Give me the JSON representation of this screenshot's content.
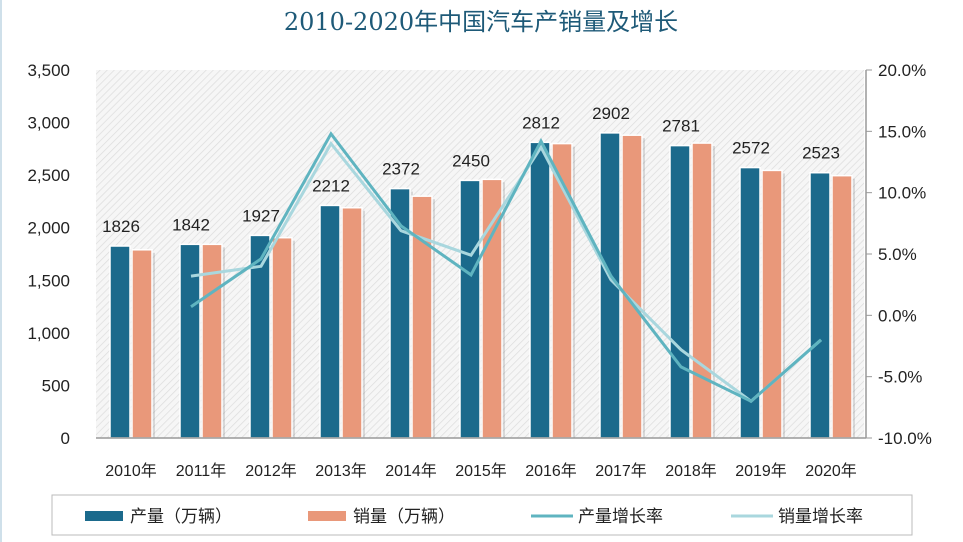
{
  "chart_data": {
    "type": "bar+line",
    "title": "2010-2020年中国汽车产销量及增长",
    "categories": [
      "2010年",
      "2011年",
      "2012年",
      "2013年",
      "2014年",
      "2015年",
      "2016年",
      "2017年",
      "2018年",
      "2019年",
      "2020年"
    ],
    "left_axis": {
      "min": 0,
      "max": 3500,
      "ticks": [
        "0",
        "500",
        "1,000",
        "1,500",
        "2,000",
        "2,500",
        "3,000",
        "3,500"
      ]
    },
    "right_axis": {
      "min": -10,
      "max": 20,
      "unit": "%",
      "ticks": [
        "-10.0%",
        "-5.0%",
        "0.0%",
        "5.0%",
        "10.0%",
        "15.0%",
        "20.0%"
      ]
    },
    "series": [
      {
        "name": "产量（万辆）",
        "kind": "bar",
        "axis": "left",
        "color": "#1b6a8c",
        "values": [
          1826,
          1842,
          1927,
          2212,
          2372,
          2450,
          2812,
          2902,
          2781,
          2572,
          2523
        ],
        "labels": [
          "1826",
          "1842",
          "1927",
          "2212",
          "2372",
          "2450",
          "2812",
          "2902",
          "2781",
          "2572",
          "2523"
        ]
      },
      {
        "name": "销量（万辆）",
        "kind": "bar",
        "axis": "left",
        "color": "#e9987a",
        "values": [
          1790,
          1842,
          1905,
          2190,
          2300,
          2460,
          2800,
          2880,
          2805,
          2545,
          2495
        ]
      },
      {
        "name": "产量增长率",
        "kind": "line",
        "axis": "right",
        "color": "#5fb4c0",
        "values": [
          null,
          0.7,
          4.6,
          14.8,
          7.3,
          3.3,
          14.2,
          3.2,
          -4.2,
          -7.0,
          -2.0
        ]
      },
      {
        "name": "销量增长率",
        "kind": "line",
        "axis": "right",
        "color": "#a9d7de",
        "values": [
          null,
          3.2,
          4.0,
          14.0,
          6.9,
          4.9,
          13.7,
          2.9,
          -2.8,
          -7.0,
          -2.0
        ]
      }
    ],
    "legend_position": "bottom",
    "grid": false,
    "background": "hatched"
  }
}
